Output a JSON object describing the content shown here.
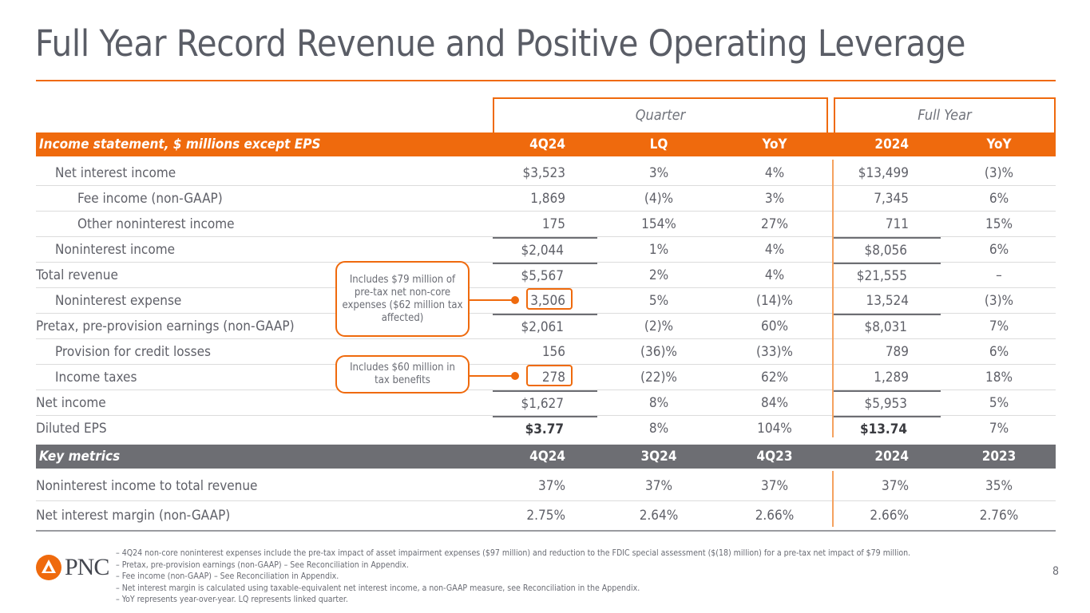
{
  "title": "Full Year Record Revenue and Positive Operating Leverage",
  "groups": {
    "quarter": "Quarter",
    "full_year": "Full Year"
  },
  "income_header": [
    "Income statement, $ millions except EPS",
    "4Q24",
    "LQ",
    "YoY",
    "2024",
    "YoY"
  ],
  "income_rows": [
    [
      "Net interest income",
      "$3,523",
      "3%",
      "4%",
      "$13,499",
      "(3)%"
    ],
    [
      "Fee income (non-GAAP)",
      "1,869",
      "(4)%",
      "3%",
      "7,345",
      "6%"
    ],
    [
      "Other noninterest income",
      "175",
      "154%",
      "27%",
      "711",
      "15%"
    ],
    [
      "Noninterest income",
      "$2,044",
      "1%",
      "4%",
      "$8,056",
      "6%"
    ],
    [
      "Total revenue",
      "$5,567",
      "2%",
      "4%",
      "$21,555",
      "–"
    ],
    [
      "Noninterest expense",
      "3,506",
      "5%",
      "(14)%",
      "13,524",
      "(3)%"
    ],
    [
      "Pretax, pre-provision earnings (non-GAAP)",
      "$2,061",
      "(2)%",
      "60%",
      "$8,031",
      "7%"
    ],
    [
      "Provision for credit losses",
      "156",
      "(36)%",
      "(33)%",
      "789",
      "6%"
    ],
    [
      "Income taxes",
      "278",
      "(22)%",
      "62%",
      "1,289",
      "18%"
    ],
    [
      "Net income",
      "$1,627",
      "8%",
      "84%",
      "$5,953",
      "5%"
    ],
    [
      "Diluted EPS",
      "$3.77",
      "8%",
      "104%",
      "$13.74",
      "7%"
    ]
  ],
  "metrics_header": [
    "Key metrics",
    "4Q24",
    "3Q24",
    "4Q23",
    "2024",
    "2023"
  ],
  "metrics_rows": [
    [
      "Noninterest income to total revenue",
      "37%",
      "37%",
      "37%",
      "37%",
      "35%"
    ],
    [
      "Net interest margin (non-GAAP)",
      "2.75%",
      "2.64%",
      "2.66%",
      "2.66%",
      "2.76%"
    ]
  ],
  "callouts": [
    "Includes $79 million of pre-tax net non-core expenses ($62 million tax affected)",
    "Includes $60 million in tax benefits"
  ],
  "footnotes": [
    "– 4Q24 non-core noninterest expenses include the pre-tax impact of asset impairment expenses ($97 million) and reduction to the FDIC special assessment ($(18) million) for a pre-tax net impact of $79 million.",
    "– Pretax, pre-provision earnings (non-GAAP) – See Reconciliation in Appendix.",
    "– Fee income (non-GAAP) – See Reconciliation in Appendix.",
    "– Net interest margin is calculated using taxable-equivalent net interest income, a non-GAAP measure, see Reconciliation in the Appendix.",
    "– YoY represents year-over-year. LQ represents linked quarter."
  ],
  "logo": "PNC",
  "page_number": "8",
  "colors": {
    "accent": "#ef6a0d",
    "header_grey": "#6d6e73"
  }
}
